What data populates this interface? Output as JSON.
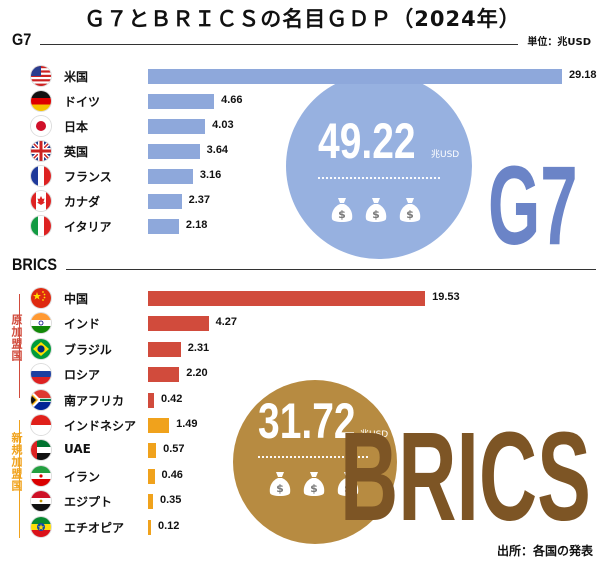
{
  "title": "Ｇ７とＢＲＩＣＳの名目ＧＤＰ（2024年）",
  "unit_label": "単位：兆USD",
  "source_label": "出所：各国の発表",
  "colors": {
    "g7_bar": "#8ea8db",
    "g7_circle": "#97b1e0",
    "g7_word": "#6b84c7",
    "brics_bar": "#d14b3c",
    "new_bar": "#f0a21c",
    "brics_circle": "#b78b41",
    "brics_word": "#7d5525"
  },
  "g7": {
    "heading": "G7",
    "big_word": "G7",
    "total": "49.22",
    "total_unit": "兆USD",
    "icons": [
      "money-bag-icon",
      "money-bag-icon",
      "money-bag-icon"
    ]
  },
  "brics": {
    "heading": "BRICS",
    "big_word": "BRICS",
    "total": "31.72",
    "total_unit": "兆USD",
    "group_original": "原加盟国",
    "group_new": "新規加盟国",
    "icons": [
      "money-bag-icon",
      "money-bag-icon",
      "money-bag-icon"
    ]
  },
  "chart_data": [
    {
      "type": "bar",
      "categories": [
        "米国",
        "ドイツ",
        "日本",
        "英国",
        "フランス",
        "カナダ",
        "イタリア"
      ],
      "values": [
        29.18,
        4.66,
        4.03,
        3.64,
        3.16,
        2.37,
        2.18
      ],
      "value_labels": [
        "29.18",
        "4.66",
        "4.03",
        "3.64",
        "3.16",
        "2.37",
        "2.18"
      ],
      "flags": [
        "us-flag-icon",
        "germany-flag-icon",
        "japan-flag-icon",
        "uk-flag-icon",
        "france-flag-icon",
        "canada-flag-icon",
        "italy-flag-icon"
      ]
    },
    {
      "type": "bar",
      "categories": [
        "中国",
        "インド",
        "ブラジル",
        "ロシア",
        "南アフリカ",
        "インドネシア",
        "UAE",
        "イラン",
        "エジプト",
        "エチオピア"
      ],
      "values": [
        19.53,
        4.27,
        2.31,
        2.2,
        0.42,
        1.49,
        0.57,
        0.46,
        0.35,
        0.12
      ],
      "value_labels": [
        "19.53",
        "4.27",
        "2.31",
        "2.20",
        "0.42",
        "1.49",
        "0.57",
        "0.46",
        "0.35",
        "0.12"
      ],
      "groups": [
        "original",
        "original",
        "original",
        "original",
        "original",
        "new",
        "new",
        "new",
        "new",
        "new"
      ],
      "flags": [
        "china-flag-icon",
        "india-flag-icon",
        "brazil-flag-icon",
        "russia-flag-icon",
        "south-africa-flag-icon",
        "indonesia-flag-icon",
        "uae-flag-icon",
        "iran-flag-icon",
        "egypt-flag-icon",
        "ethiopia-flag-icon"
      ]
    }
  ]
}
